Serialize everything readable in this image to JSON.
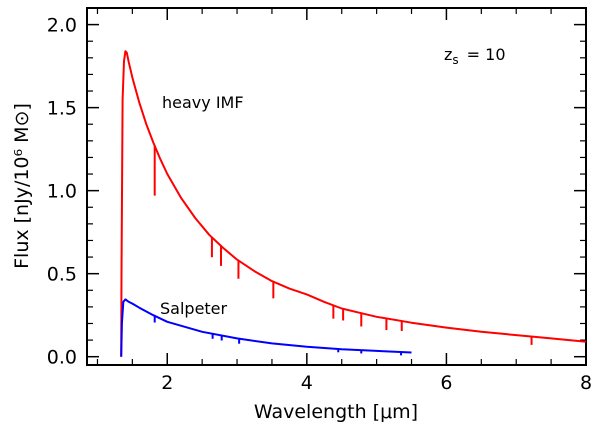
{
  "chart_data": {
    "type": "line",
    "title": "",
    "xlabel": "Wavelength [μm]",
    "ylabel": "Flux [nJy/10⁶ M⊙]",
    "xlim": [
      0.85,
      8.0
    ],
    "ylim": [
      -0.05,
      2.1
    ],
    "x_ticks": [
      2,
      4,
      6,
      8
    ],
    "y_ticks": [
      0.0,
      0.5,
      1.0,
      1.5,
      2.0
    ],
    "x_tick_labels": [
      "2",
      "4",
      "6",
      "8"
    ],
    "y_tick_labels": [
      "0.0",
      "0.5",
      "1.0",
      "1.5",
      "2.0"
    ],
    "grid": false,
    "legend": "none",
    "annotation_redshift": "z",
    "annotation_redshift_sub": "s",
    "annotation_redshift_value": "= 10",
    "series": [
      {
        "name": "heavy IMF",
        "color": "#ff0000",
        "x": [
          1.34,
          1.345,
          1.36,
          1.38,
          1.4,
          1.42,
          1.45,
          1.5,
          1.6,
          1.7,
          1.8,
          1.9,
          2.0,
          2.2,
          2.4,
          2.6,
          2.8,
          3.0,
          3.25,
          3.5,
          3.75,
          4.0,
          4.25,
          4.5,
          4.75,
          5.0,
          5.5,
          6.0,
          6.5,
          7.0,
          7.5,
          8.0
        ],
        "y": [
          0.0,
          0.5,
          1.55,
          1.78,
          1.84,
          1.83,
          1.77,
          1.68,
          1.53,
          1.4,
          1.29,
          1.19,
          1.1,
          0.955,
          0.835,
          0.735,
          0.655,
          0.585,
          0.515,
          0.455,
          0.41,
          0.375,
          0.33,
          0.29,
          0.265,
          0.24,
          0.205,
          0.175,
          0.15,
          0.13,
          0.11,
          0.09
        ],
        "absorption_lines": [
          {
            "x": 1.82,
            "depth": 0.3
          },
          {
            "x": 2.64,
            "depth": 0.12
          },
          {
            "x": 2.77,
            "depth": 0.12
          },
          {
            "x": 3.02,
            "depth": 0.11
          },
          {
            "x": 3.52,
            "depth": 0.1
          },
          {
            "x": 4.38,
            "depth": 0.08
          },
          {
            "x": 4.52,
            "depth": 0.07
          },
          {
            "x": 4.78,
            "depth": 0.08
          },
          {
            "x": 5.14,
            "depth": 0.07
          },
          {
            "x": 5.36,
            "depth": 0.06
          },
          {
            "x": 7.22,
            "depth": 0.05
          }
        ]
      },
      {
        "name": "Salpeter",
        "color": "#0000ff",
        "x": [
          1.34,
          1.35,
          1.37,
          1.4,
          1.45,
          1.5,
          1.6,
          1.8,
          2.0,
          2.5,
          3.0,
          3.5,
          4.0,
          4.5,
          5.0,
          5.5
        ],
        "y": [
          0.0,
          0.2,
          0.33,
          0.345,
          0.33,
          0.32,
          0.295,
          0.25,
          0.21,
          0.15,
          0.11,
          0.08,
          0.06,
          0.045,
          0.035,
          0.025
        ],
        "absorption_lines": [
          {
            "x": 1.82,
            "depth": 0.04
          },
          {
            "x": 2.65,
            "depth": 0.03
          },
          {
            "x": 2.78,
            "depth": 0.03
          },
          {
            "x": 3.03,
            "depth": 0.03
          },
          {
            "x": 4.45,
            "depth": 0.02
          },
          {
            "x": 4.78,
            "depth": 0.02
          },
          {
            "x": 5.35,
            "depth": 0.02
          }
        ]
      }
    ]
  }
}
